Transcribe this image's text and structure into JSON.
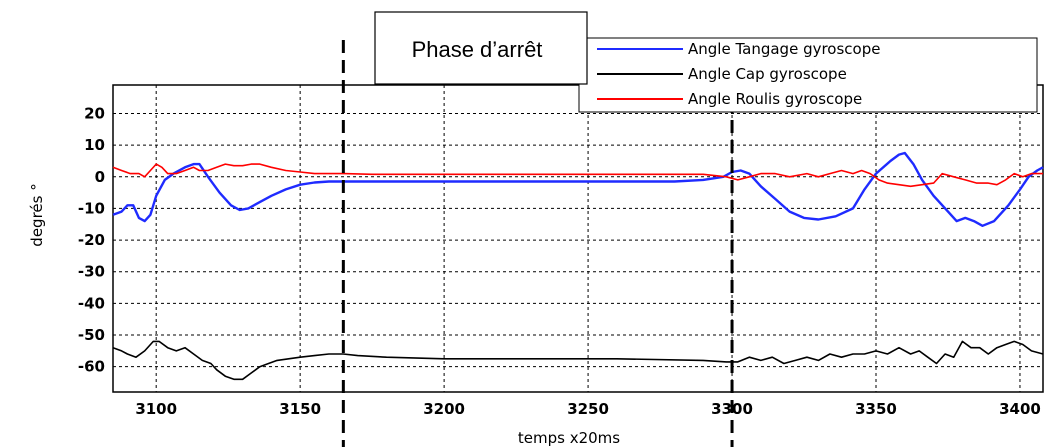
{
  "chart_data": {
    "type": "line",
    "xlabel": "temps x20ms",
    "ylabel": "degrés °",
    "xlim": [
      3085,
      3408
    ],
    "ylim": [
      -68,
      29
    ],
    "x_ticks": [
      3100,
      3150,
      3200,
      3250,
      3300,
      3350,
      3400
    ],
    "x_tick_labels": [
      "3100",
      "3150",
      "3200",
      "3250",
      "3300",
      "3350",
      "3400"
    ],
    "y_ticks": [
      20,
      10,
      0,
      -10,
      -20,
      -30,
      -40,
      -50,
      -60
    ],
    "y_tick_labels": [
      "20",
      "10",
      "0",
      "-10",
      "-20",
      "-30",
      "-40",
      "-50",
      "-60"
    ],
    "grid": true,
    "legend_position": "top-right",
    "annotation": {
      "label": "Phase d’arrêt",
      "start_x": 3165,
      "end_x": 3300
    },
    "series": [
      {
        "name": "Angle Tangage gyroscope",
        "color": "#1f2bff",
        "points": [
          [
            3085,
            -12
          ],
          [
            3088,
            -11
          ],
          [
            3090,
            -9
          ],
          [
            3092,
            -9
          ],
          [
            3094,
            -13
          ],
          [
            3096,
            -14
          ],
          [
            3098,
            -12
          ],
          [
            3100,
            -6
          ],
          [
            3103,
            -1
          ],
          [
            3106,
            1
          ],
          [
            3110,
            3
          ],
          [
            3113,
            4
          ],
          [
            3115,
            4
          ],
          [
            3118,
            0
          ],
          [
            3122,
            -5
          ],
          [
            3126,
            -9
          ],
          [
            3129,
            -10.5
          ],
          [
            3132,
            -10
          ],
          [
            3136,
            -8
          ],
          [
            3140,
            -6
          ],
          [
            3145,
            -4
          ],
          [
            3150,
            -2.5
          ],
          [
            3155,
            -1.8
          ],
          [
            3160,
            -1.5
          ],
          [
            3170,
            -1.5
          ],
          [
            3200,
            -1.5
          ],
          [
            3250,
            -1.5
          ],
          [
            3280,
            -1.5
          ],
          [
            3290,
            -1
          ],
          [
            3297,
            0
          ],
          [
            3300,
            1.5
          ],
          [
            3303,
            2
          ],
          [
            3306,
            1
          ],
          [
            3310,
            -3
          ],
          [
            3315,
            -7
          ],
          [
            3320,
            -11
          ],
          [
            3325,
            -13
          ],
          [
            3330,
            -13.5
          ],
          [
            3336,
            -12.5
          ],
          [
            3342,
            -10
          ],
          [
            3346,
            -4
          ],
          [
            3350,
            1
          ],
          [
            3355,
            5
          ],
          [
            3358,
            7
          ],
          [
            3360,
            7.5
          ],
          [
            3363,
            4
          ],
          [
            3366,
            -1
          ],
          [
            3370,
            -6
          ],
          [
            3375,
            -11
          ],
          [
            3378,
            -14
          ],
          [
            3381,
            -13
          ],
          [
            3384,
            -14
          ],
          [
            3387,
            -15.5
          ],
          [
            3391,
            -14
          ],
          [
            3396,
            -9
          ],
          [
            3400,
            -4
          ],
          [
            3403,
            0
          ],
          [
            3406,
            2
          ],
          [
            3408,
            3
          ]
        ]
      },
      {
        "name": "Angle Cap gyroscope",
        "color": "#000000",
        "points": [
          [
            3085,
            -54
          ],
          [
            3088,
            -55
          ],
          [
            3090,
            -56
          ],
          [
            3093,
            -57
          ],
          [
            3096,
            -55
          ],
          [
            3099,
            -52
          ],
          [
            3101,
            -52
          ],
          [
            3104,
            -54
          ],
          [
            3107,
            -55
          ],
          [
            3110,
            -54
          ],
          [
            3113,
            -56
          ],
          [
            3116,
            -58
          ],
          [
            3119,
            -59
          ],
          [
            3121,
            -61
          ],
          [
            3124,
            -63
          ],
          [
            3127,
            -64
          ],
          [
            3130,
            -64
          ],
          [
            3133,
            -62
          ],
          [
            3136,
            -60
          ],
          [
            3139,
            -59
          ],
          [
            3142,
            -58
          ],
          [
            3146,
            -57.5
          ],
          [
            3150,
            -57
          ],
          [
            3155,
            -56.5
          ],
          [
            3160,
            -56
          ],
          [
            3165,
            -56
          ],
          [
            3170,
            -56.5
          ],
          [
            3180,
            -57
          ],
          [
            3200,
            -57.5
          ],
          [
            3230,
            -57.5
          ],
          [
            3260,
            -57.5
          ],
          [
            3290,
            -58
          ],
          [
            3298,
            -58.5
          ],
          [
            3302,
            -58.5
          ],
          [
            3306,
            -57
          ],
          [
            3310,
            -58
          ],
          [
            3314,
            -57
          ],
          [
            3318,
            -59
          ],
          [
            3322,
            -58
          ],
          [
            3326,
            -57
          ],
          [
            3330,
            -58
          ],
          [
            3334,
            -56
          ],
          [
            3338,
            -57
          ],
          [
            3342,
            -56
          ],
          [
            3346,
            -56
          ],
          [
            3350,
            -55
          ],
          [
            3354,
            -56
          ],
          [
            3358,
            -54
          ],
          [
            3362,
            -56
          ],
          [
            3365,
            -55
          ],
          [
            3368,
            -57
          ],
          [
            3371,
            -59
          ],
          [
            3374,
            -56
          ],
          [
            3377,
            -57
          ],
          [
            3380,
            -52
          ],
          [
            3383,
            -54
          ],
          [
            3386,
            -54
          ],
          [
            3389,
            -56
          ],
          [
            3392,
            -54
          ],
          [
            3395,
            -53
          ],
          [
            3398,
            -52
          ],
          [
            3401,
            -53
          ],
          [
            3404,
            -55
          ],
          [
            3408,
            -56
          ]
        ]
      },
      {
        "name": "Angle Roulis gyroscope",
        "color": "#ff0000",
        "points": [
          [
            3085,
            3
          ],
          [
            3088,
            2
          ],
          [
            3091,
            1
          ],
          [
            3094,
            1
          ],
          [
            3096,
            0
          ],
          [
            3098,
            2
          ],
          [
            3100,
            4
          ],
          [
            3102,
            3
          ],
          [
            3104,
            1
          ],
          [
            3107,
            1
          ],
          [
            3110,
            2
          ],
          [
            3113,
            3
          ],
          [
            3115,
            2
          ],
          [
            3118,
            2
          ],
          [
            3121,
            3
          ],
          [
            3124,
            4
          ],
          [
            3127,
            3.5
          ],
          [
            3130,
            3.5
          ],
          [
            3133,
            4
          ],
          [
            3136,
            4
          ],
          [
            3140,
            3
          ],
          [
            3145,
            2
          ],
          [
            3150,
            1.5
          ],
          [
            3155,
            1
          ],
          [
            3160,
            1
          ],
          [
            3165,
            1
          ],
          [
            3175,
            0.8
          ],
          [
            3200,
            0.8
          ],
          [
            3250,
            0.8
          ],
          [
            3290,
            0.8
          ],
          [
            3298,
            0
          ],
          [
            3302,
            -1
          ],
          [
            3306,
            0
          ],
          [
            3310,
            1
          ],
          [
            3315,
            1
          ],
          [
            3320,
            0
          ],
          [
            3326,
            1
          ],
          [
            3330,
            0
          ],
          [
            3334,
            1
          ],
          [
            3338,
            2
          ],
          [
            3342,
            1
          ],
          [
            3345,
            2
          ],
          [
            3348,
            1
          ],
          [
            3351,
            -1
          ],
          [
            3354,
            -2
          ],
          [
            3358,
            -2.5
          ],
          [
            3362,
            -3
          ],
          [
            3366,
            -2.5
          ],
          [
            3370,
            -2
          ],
          [
            3373,
            1
          ],
          [
            3377,
            0
          ],
          [
            3381,
            -1
          ],
          [
            3385,
            -2
          ],
          [
            3389,
            -2
          ],
          [
            3392,
            -2.5
          ],
          [
            3395,
            -1
          ],
          [
            3398,
            1
          ],
          [
            3401,
            0
          ],
          [
            3404,
            1
          ],
          [
            3408,
            1
          ]
        ]
      }
    ]
  }
}
